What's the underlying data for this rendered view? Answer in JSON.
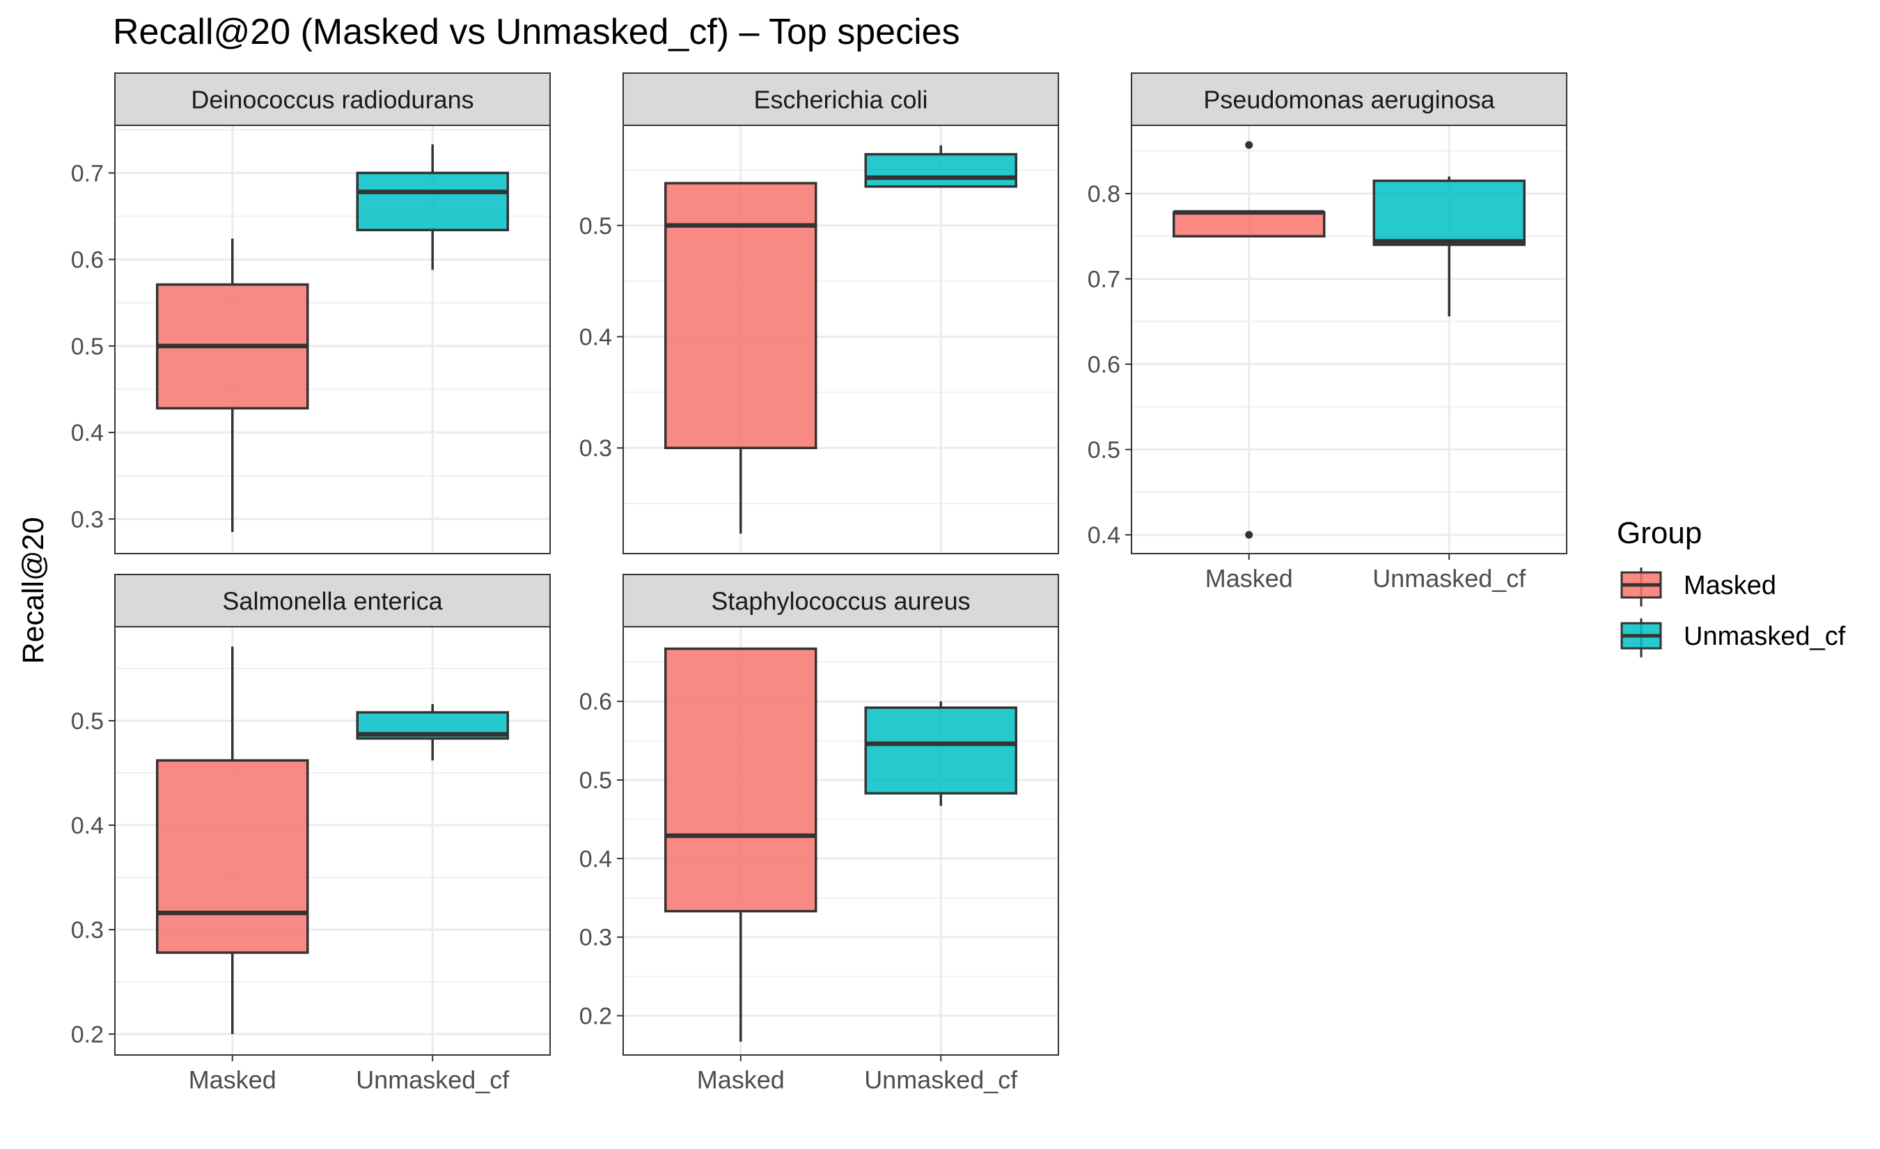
{
  "chart_data": {
    "type": "boxplot",
    "title": "Recall@20 (Masked vs Unmasked_cf) – Top species",
    "ylabel": "Recall@20",
    "xlabel": "",
    "categories": [
      "Masked",
      "Unmasked_cf"
    ],
    "legend": {
      "title": "Group",
      "position": "right",
      "entries": [
        {
          "label": "Masked",
          "color": "#F8766D"
        },
        {
          "label": "Unmasked_cf",
          "color": "#00BFC4"
        }
      ]
    },
    "grid": true,
    "panels": [
      {
        "name": "Deinococcus radiodurans",
        "ylim": [
          0.26,
          0.755
        ],
        "yticks": [
          0.3,
          0.4,
          0.5,
          0.6,
          0.7
        ],
        "ytick_labels": [
          "0.3",
          "0.4",
          "0.5",
          "0.6",
          "0.7"
        ],
        "boxes": [
          {
            "group": "Masked",
            "min": 0.285,
            "q1": 0.428,
            "median": 0.5,
            "q3": 0.571,
            "max": 0.624,
            "outliers": []
          },
          {
            "group": "Unmasked_cf",
            "min": 0.588,
            "q1": 0.634,
            "median": 0.678,
            "q3": 0.7,
            "max": 0.733,
            "outliers": []
          }
        ]
      },
      {
        "name": "Escherichia coli",
        "ylim": [
          0.205,
          0.59
        ],
        "yticks": [
          0.3,
          0.4,
          0.5
        ],
        "ytick_labels": [
          "0.3",
          "0.4",
          "0.5"
        ],
        "boxes": [
          {
            "group": "Masked",
            "min": 0.223,
            "q1": 0.3,
            "median": 0.5,
            "q3": 0.538,
            "max": 0.538,
            "outliers": []
          },
          {
            "group": "Unmasked_cf",
            "min": 0.535,
            "q1": 0.535,
            "median": 0.543,
            "q3": 0.564,
            "max": 0.572,
            "outliers": []
          }
        ]
      },
      {
        "name": "Pseudomonas aeruginosa",
        "ylim": [
          0.378,
          0.88
        ],
        "yticks": [
          0.4,
          0.5,
          0.6,
          0.7,
          0.8
        ],
        "ytick_labels": [
          "0.4",
          "0.5",
          "0.6",
          "0.7",
          "0.8"
        ],
        "boxes": [
          {
            "group": "Masked",
            "min": 0.75,
            "q1": 0.75,
            "median": 0.778,
            "q3": 0.778,
            "max": 0.778,
            "outliers": [
              0.857,
              0.4
            ]
          },
          {
            "group": "Unmasked_cf",
            "min": 0.656,
            "q1": 0.74,
            "median": 0.744,
            "q3": 0.815,
            "max": 0.82,
            "outliers": []
          }
        ]
      },
      {
        "name": "Salmonella enterica",
        "ylim": [
          0.18,
          0.59
        ],
        "yticks": [
          0.2,
          0.3,
          0.4,
          0.5
        ],
        "ytick_labels": [
          "0.2",
          "0.3",
          "0.4",
          "0.5"
        ],
        "boxes": [
          {
            "group": "Masked",
            "min": 0.2,
            "q1": 0.278,
            "median": 0.316,
            "q3": 0.462,
            "max": 0.571,
            "outliers": []
          },
          {
            "group": "Unmasked_cf",
            "min": 0.462,
            "q1": 0.483,
            "median": 0.487,
            "q3": 0.508,
            "max": 0.516,
            "outliers": []
          }
        ]
      },
      {
        "name": "Staphylococcus aureus",
        "ylim": [
          0.15,
          0.695
        ],
        "yticks": [
          0.2,
          0.3,
          0.4,
          0.5,
          0.6
        ],
        "ytick_labels": [
          "0.2",
          "0.3",
          "0.4",
          "0.5",
          "0.6"
        ],
        "boxes": [
          {
            "group": "Masked",
            "min": 0.167,
            "q1": 0.333,
            "median": 0.429,
            "q3": 0.667,
            "max": 0.667,
            "outliers": []
          },
          {
            "group": "Unmasked_cf",
            "min": 0.467,
            "q1": 0.483,
            "median": 0.546,
            "q3": 0.592,
            "max": 0.6,
            "outliers": []
          }
        ]
      }
    ]
  }
}
